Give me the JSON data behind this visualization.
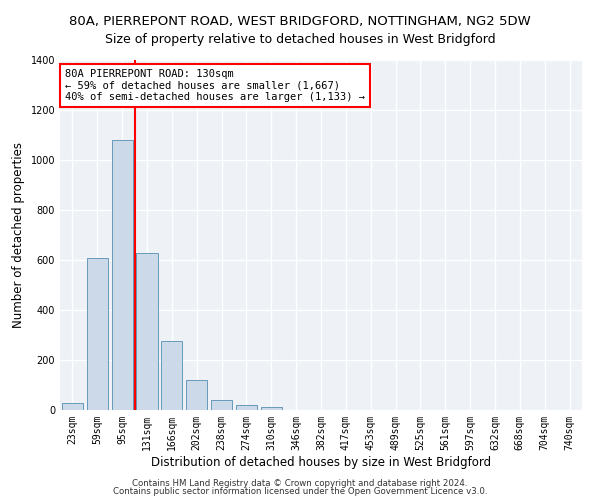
{
  "title": "80A, PIERREPONT ROAD, WEST BRIDGFORD, NOTTINGHAM, NG2 5DW",
  "subtitle": "Size of property relative to detached houses in West Bridgford",
  "xlabel": "Distribution of detached houses by size in West Bridgford",
  "ylabel": "Number of detached properties",
  "footnote1": "Contains HM Land Registry data © Crown copyright and database right 2024.",
  "footnote2": "Contains public sector information licensed under the Open Government Licence v3.0.",
  "categories": [
    "23sqm",
    "59sqm",
    "95sqm",
    "131sqm",
    "166sqm",
    "202sqm",
    "238sqm",
    "274sqm",
    "310sqm",
    "346sqm",
    "382sqm",
    "417sqm",
    "453sqm",
    "489sqm",
    "525sqm",
    "561sqm",
    "597sqm",
    "632sqm",
    "668sqm",
    "704sqm",
    "740sqm"
  ],
  "values": [
    30,
    610,
    1080,
    630,
    275,
    120,
    40,
    20,
    12,
    0,
    0,
    0,
    0,
    0,
    0,
    0,
    0,
    0,
    0,
    0,
    0
  ],
  "bar_color": "#ccd9e8",
  "bar_edge_color": "#6699bb",
  "vline_x_pos": 2.5,
  "vline_color": "red",
  "annotation_line1": "80A PIERREPONT ROAD: 130sqm",
  "annotation_line2": "← 59% of detached houses are smaller (1,667)",
  "annotation_line3": "40% of semi-detached houses are larger (1,133) →",
  "ylim": [
    0,
    1400
  ],
  "yticks": [
    0,
    200,
    400,
    600,
    800,
    1000,
    1200,
    1400
  ],
  "bg_color": "#eef2f7",
  "grid_color": "white",
  "title_fontsize": 9.5,
  "subtitle_fontsize": 9,
  "axis_label_fontsize": 8.5,
  "tick_fontsize": 7,
  "annot_fontsize": 7.5
}
